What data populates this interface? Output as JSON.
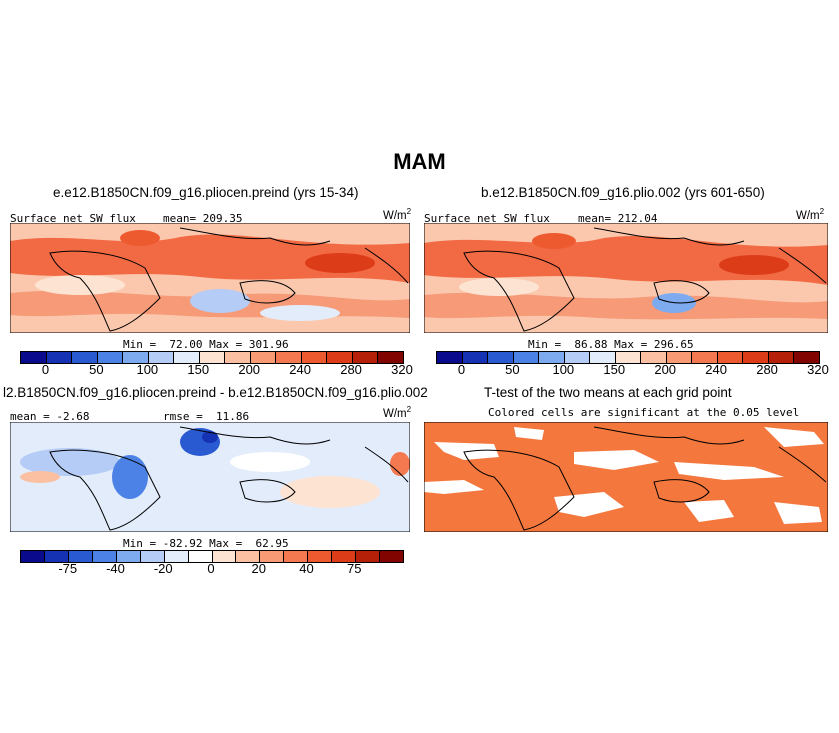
{
  "figure_title": "MAM",
  "panels": {
    "p1": {
      "title": "e.e12.B1850CN.f09_g16.pliocen.preind (yrs 15-34)",
      "left_label": "Surface net SW flux",
      "mean_label": "mean= 209.35",
      "units": "W/m",
      "units_sup": "2",
      "minmax": "Min =  72.00 Max = 301.96"
    },
    "p2": {
      "title": "b.e12.B1850CN.f09_g16.plio.002 (yrs 601-650)",
      "left_label": "Surface net SW flux",
      "mean_label": "mean= 212.04",
      "units": "W/m",
      "units_sup": "2",
      "minmax": "Min =  86.88 Max = 296.65"
    },
    "p3": {
      "title": "l2.B1850CN.f09_g16.pliocen.preind - b.e12.B1850CN.f09_g16.plio.002",
      "left_label": "mean = -2.68",
      "mean_label": "rmse =  11.86",
      "units": "W/m",
      "units_sup": "2",
      "minmax": "Min = -82.92 Max =  62.95"
    },
    "p4": {
      "title": "T-test of the two means at each grid point",
      "subtitle": "Colored cells are significant at the 0.05 level"
    }
  },
  "colorbar_abs": {
    "ticks": [
      "0",
      "50",
      "100",
      "150",
      "200",
      "240",
      "280",
      "320"
    ],
    "colors": [
      "#0a0a8c",
      "#1632b4",
      "#2a5ad2",
      "#4c82e6",
      "#7eaaf0",
      "#b4ccf6",
      "#e2ecfb",
      "#fde3d2",
      "#fbc0a2",
      "#f89a74",
      "#f47850",
      "#ee5a30",
      "#dc3c18",
      "#b42008",
      "#820400"
    ]
  },
  "colorbar_diff": {
    "ticks": [
      "-75",
      "-40",
      "-20",
      "0",
      "20",
      "40",
      "75"
    ],
    "colors": [
      "#0a0a8c",
      "#1632b4",
      "#2a5ad2",
      "#4c82e6",
      "#7eaaf0",
      "#b4ccf6",
      "#e2ecfb",
      "#ffffff",
      "#fde3d2",
      "#fbc0a2",
      "#f89a74",
      "#f47850",
      "#ee5a30",
      "#dc3c18",
      "#b42008",
      "#820400"
    ]
  },
  "colors": {
    "significant": "#f4783e",
    "ocean_high": "#f06440",
    "ocean_mid": "#f8a07e"
  }
}
